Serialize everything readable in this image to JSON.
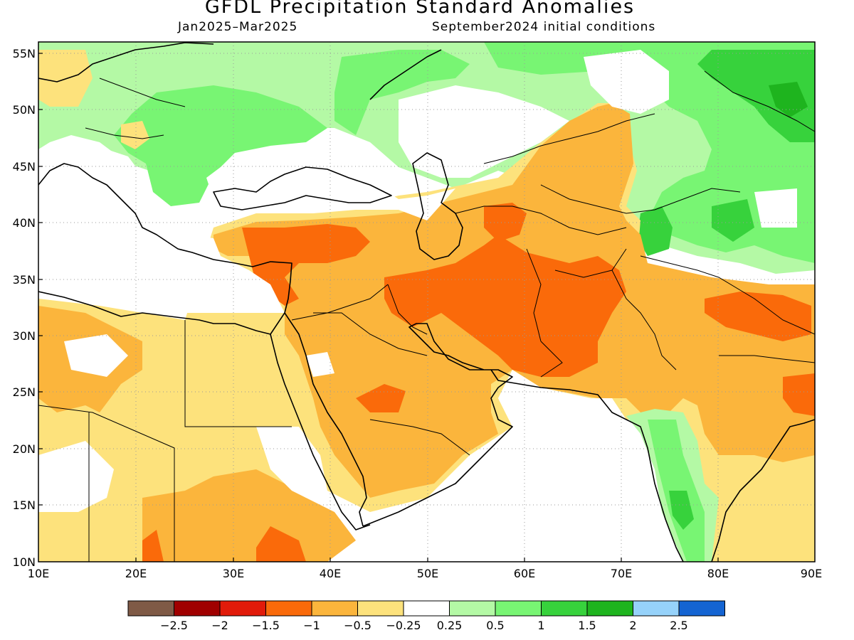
{
  "title": "GFDL Precipitation Standard Anomalies",
  "subtitle_left": "Jan2025–Mar2025",
  "subtitle_right": "September2024 initial conditions",
  "lat_labels": [
    "55N",
    "50N",
    "45N",
    "40N",
    "35N",
    "30N",
    "25N",
    "20N",
    "15N",
    "10N"
  ],
  "lon_labels": [
    "10E",
    "20E",
    "30E",
    "40E",
    "50E",
    "60E",
    "70E",
    "80E",
    "90E"
  ],
  "colorbar": {
    "colors": [
      "#7f5a46",
      "#a00000",
      "#e11b0a",
      "#fa6a0a",
      "#fbb53c",
      "#fde27c",
      "#ffffff",
      "#b4f9a5",
      "#78f573",
      "#37d23c",
      "#1eb41e",
      "#96d2fa",
      "#1464d2"
    ],
    "labels": [
      "−2.5",
      "−2",
      "−1.5",
      "−1",
      "−0.5",
      "−0.25",
      "0.25",
      "0.5",
      "1",
      "1.5",
      "2",
      "2.5"
    ]
  },
  "map_extent": {
    "lon": [
      10,
      90
    ],
    "lat": [
      10,
      56
    ]
  },
  "fill_colors": {
    "neg_025": "#fde27c",
    "neg_05": "#fbb53c",
    "neg_1": "#fa6a0a",
    "neg_15": "#e11b0a",
    "pos_025": "#b4f9a5",
    "pos_05": "#78f573",
    "pos_1": "#37d23c",
    "pos_15": "#1eb41e"
  }
}
